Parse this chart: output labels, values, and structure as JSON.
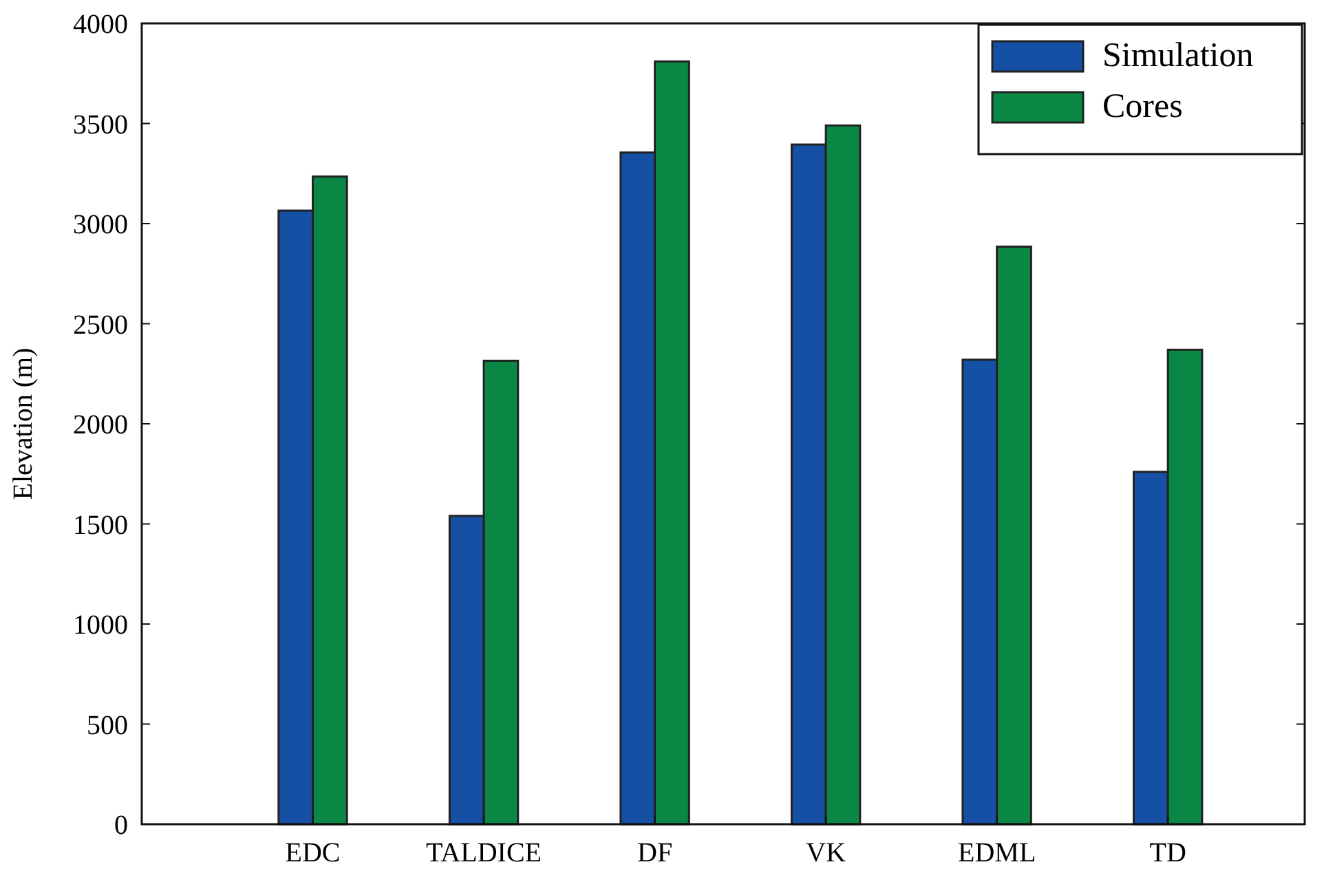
{
  "chart_data": {
    "type": "bar",
    "ylabel": "Elevation (m)",
    "categories": [
      "EDC",
      "TALDICE",
      "DF",
      "VK",
      "EDML",
      "TD"
    ],
    "series": [
      {
        "name": "Simulation",
        "color": "#1550a5",
        "values": [
          3065,
          1540,
          3355,
          3395,
          2320,
          1760
        ]
      },
      {
        "name": "Cores",
        "color": "#0a8744",
        "values": [
          3235,
          2315,
          3810,
          3490,
          2885,
          2370
        ]
      }
    ],
    "ylim": [
      0,
      4000
    ],
    "yticks": [
      0,
      500,
      1000,
      1500,
      2000,
      2500,
      3000,
      3500,
      4000
    ],
    "grid": false,
    "legend": "top right"
  }
}
